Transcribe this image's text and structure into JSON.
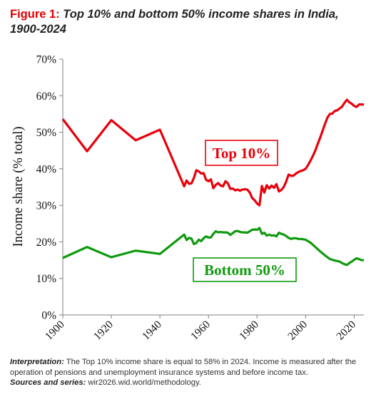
{
  "figure": {
    "label": "Figure 1:",
    "title": "Top 10% and bottom 50% income shares in India, 1900-2024"
  },
  "chart_data": {
    "type": "line",
    "ylabel": "Income share (% total)",
    "xlabel": "",
    "xlim": [
      1900,
      2024
    ],
    "ylim": [
      0,
      70
    ],
    "x_ticks": [
      "1900",
      "1920",
      "1940",
      "1960",
      "1980",
      "2000",
      "2020"
    ],
    "y_ticks": [
      "0%",
      "10%",
      "20%",
      "30%",
      "40%",
      "50%",
      "60%",
      "70%"
    ],
    "grid": false,
    "series": [
      {
        "name": "Top 10%",
        "color": "#e8000b",
        "points": [
          [
            1900,
            53.6
          ],
          [
            1910,
            44.8
          ],
          [
            1920,
            53.3
          ],
          [
            1930,
            47.8
          ],
          [
            1940,
            50.7
          ],
          [
            1950,
            35.2
          ],
          [
            1951,
            36.8
          ],
          [
            1952,
            35.9
          ],
          [
            1953,
            36.0
          ],
          [
            1954,
            37.5
          ],
          [
            1955,
            39.6
          ],
          [
            1956,
            39.3
          ],
          [
            1957,
            38.7
          ],
          [
            1958,
            38.8
          ],
          [
            1959,
            37.0
          ],
          [
            1960,
            36.6
          ],
          [
            1961,
            37.1
          ],
          [
            1962,
            34.7
          ],
          [
            1963,
            35.6
          ],
          [
            1964,
            36.1
          ],
          [
            1965,
            35.4
          ],
          [
            1966,
            35.2
          ],
          [
            1967,
            36.6
          ],
          [
            1968,
            36.0
          ],
          [
            1969,
            34.5
          ],
          [
            1970,
            34.6
          ],
          [
            1971,
            34.1
          ],
          [
            1972,
            34.3
          ],
          [
            1973,
            34.0
          ],
          [
            1974,
            34.3
          ],
          [
            1975,
            34.4
          ],
          [
            1976,
            34.3
          ],
          [
            1977,
            33.5
          ],
          [
            1978,
            32.0
          ],
          [
            1979,
            31.4
          ],
          [
            1980,
            30.5
          ],
          [
            1981,
            30.0
          ],
          [
            1982,
            35.3
          ],
          [
            1983,
            33.5
          ],
          [
            1984,
            35.5
          ],
          [
            1985,
            34.6
          ],
          [
            1986,
            35.4
          ],
          [
            1987,
            34.8
          ],
          [
            1988,
            35.8
          ],
          [
            1989,
            33.8
          ],
          [
            1990,
            34.2
          ],
          [
            1991,
            35.0
          ],
          [
            1992,
            36.5
          ],
          [
            1993,
            38.4
          ],
          [
            1994,
            38.1
          ],
          [
            1995,
            38.1
          ],
          [
            1996,
            38.7
          ],
          [
            1997,
            39.1
          ],
          [
            1998,
            39.4
          ],
          [
            1999,
            39.6
          ],
          [
            2000,
            40.0
          ],
          [
            2001,
            41.0
          ],
          [
            2002,
            42.2
          ],
          [
            2003,
            43.5
          ],
          [
            2004,
            45.0
          ],
          [
            2005,
            46.8
          ],
          [
            2006,
            48.5
          ],
          [
            2007,
            50.4
          ],
          [
            2008,
            52.3
          ],
          [
            2009,
            54.0
          ],
          [
            2010,
            55.0
          ],
          [
            2011,
            55.1
          ],
          [
            2012,
            55.8
          ],
          [
            2013,
            56.0
          ],
          [
            2014,
            56.5
          ],
          [
            2015,
            57.0
          ],
          [
            2016,
            58.0
          ],
          [
            2017,
            58.9
          ],
          [
            2018,
            58.2
          ],
          [
            2019,
            57.8
          ],
          [
            2020,
            57.2
          ],
          [
            2021,
            56.9
          ],
          [
            2022,
            57.6
          ],
          [
            2023,
            57.6
          ],
          [
            2024,
            57.6
          ]
        ]
      },
      {
        "name": "Bottom 50%",
        "color": "#0f9a0f",
        "points": [
          [
            1900,
            15.6
          ],
          [
            1910,
            18.6
          ],
          [
            1920,
            15.8
          ],
          [
            1930,
            17.6
          ],
          [
            1940,
            16.7
          ],
          [
            1950,
            22.0
          ],
          [
            1951,
            20.5
          ],
          [
            1952,
            21.1
          ],
          [
            1953,
            20.9
          ],
          [
            1954,
            19.4
          ],
          [
            1955,
            19.7
          ],
          [
            1956,
            20.6
          ],
          [
            1957,
            20.2
          ],
          [
            1958,
            21.0
          ],
          [
            1959,
            21.5
          ],
          [
            1960,
            21.2
          ],
          [
            1961,
            21.2
          ],
          [
            1962,
            22.2
          ],
          [
            1963,
            22.9
          ],
          [
            1964,
            22.6
          ],
          [
            1965,
            22.7
          ],
          [
            1966,
            22.6
          ],
          [
            1967,
            22.6
          ],
          [
            1968,
            22.5
          ],
          [
            1969,
            21.9
          ],
          [
            1970,
            22.4
          ],
          [
            1971,
            22.9
          ],
          [
            1972,
            23.0
          ],
          [
            1973,
            22.7
          ],
          [
            1974,
            22.6
          ],
          [
            1975,
            22.6
          ],
          [
            1976,
            22.5
          ],
          [
            1977,
            22.9
          ],
          [
            1978,
            23.3
          ],
          [
            1979,
            23.4
          ],
          [
            1980,
            23.3
          ],
          [
            1981,
            23.8
          ],
          [
            1982,
            22.2
          ],
          [
            1983,
            22.5
          ],
          [
            1984,
            21.7
          ],
          [
            1985,
            22.0
          ],
          [
            1986,
            21.7
          ],
          [
            1987,
            21.8
          ],
          [
            1988,
            21.5
          ],
          [
            1989,
            22.5
          ],
          [
            1990,
            22.2
          ],
          [
            1991,
            22.0
          ],
          [
            1992,
            21.6
          ],
          [
            1993,
            21.1
          ],
          [
            1994,
            20.8
          ],
          [
            1995,
            21.0
          ],
          [
            1996,
            21.0
          ],
          [
            1997,
            20.8
          ],
          [
            1998,
            20.8
          ],
          [
            1999,
            20.7
          ],
          [
            2000,
            20.6
          ],
          [
            2002,
            19.8
          ],
          [
            2004,
            18.6
          ],
          [
            2006,
            17.4
          ],
          [
            2008,
            16.3
          ],
          [
            2010,
            15.3
          ],
          [
            2012,
            14.9
          ],
          [
            2014,
            14.6
          ],
          [
            2015,
            14.2
          ],
          [
            2016,
            13.9
          ],
          [
            2017,
            13.7
          ],
          [
            2018,
            14.2
          ],
          [
            2019,
            14.6
          ],
          [
            2020,
            15.1
          ],
          [
            2021,
            15.5
          ],
          [
            2022,
            15.3
          ],
          [
            2023,
            15.0
          ],
          [
            2024,
            15.0
          ]
        ]
      }
    ],
    "annotations": [
      {
        "text": "Top 10%",
        "series": "Top 10%",
        "color": "#e8000b"
      },
      {
        "text": "Bottom 50%",
        "series": "Bottom 50%",
        "color": "#0f9a0f"
      }
    ]
  },
  "notes": {
    "interpretation_label": "Interpretation:",
    "interpretation_text": " The Top 10% income share is equal to 58% in 2024. Income is measured after the operation of pensions and unemployment insurance systems and before income tax.",
    "sources_label": "Sources and series:",
    "sources_text": " wir2026.wid.world/methodology."
  }
}
